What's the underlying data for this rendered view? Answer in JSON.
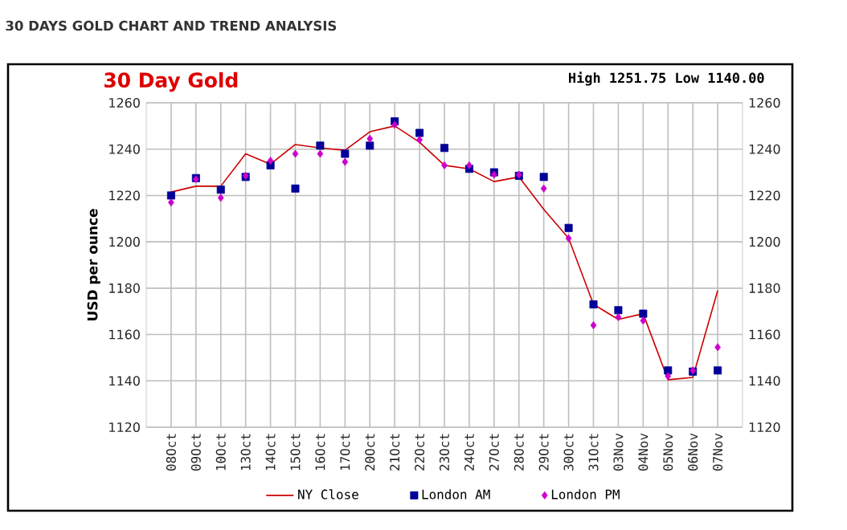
{
  "chart_data": {
    "type": "line",
    "title": "30 DAYS GOLD CHART AND TREND ANALYSIS",
    "annotations": [
      "30 Day Gold",
      "High 1251.75 Low 1140.00"
    ],
    "ylabel": "USD per ounce",
    "categories": [
      "08Oct",
      "09Oct",
      "10Oct",
      "13Oct",
      "14Oct",
      "15Oct",
      "16Oct",
      "17Oct",
      "20Oct",
      "21Oct",
      "22Oct",
      "23Oct",
      "24Oct",
      "27Oct",
      "28Oct",
      "29Oct",
      "30Oct",
      "31Oct",
      "03Nov",
      "04Nov",
      "05Nov",
      "06Nov",
      "07Nov"
    ],
    "series": [
      {
        "name": "NY Close",
        "marker": "none",
        "color": "#cc0000",
        "values": [
          1221.5,
          1224,
          1224,
          1238,
          1233.5,
          1242,
          1240.5,
          1239.5,
          1247.5,
          1250,
          1243,
          1233,
          1231.5,
          1226,
          1228,
          1214,
          1201.5,
          1173,
          1166.5,
          1169,
          1140.5,
          1141.5,
          1179
        ]
      },
      {
        "name": "London AM",
        "type": "scatter",
        "marker": "square",
        "color": "#000099",
        "values": [
          1220,
          1227.5,
          1222.5,
          1228,
          1233,
          1223,
          1241.5,
          1238,
          1241.5,
          1252,
          1247,
          1240.5,
          1231.5,
          1230,
          1228.5,
          1228,
          1206,
          1173,
          1170.5,
          1169,
          1144.5,
          1144,
          1144.5
        ]
      },
      {
        "name": "London PM",
        "type": "scatter",
        "marker": "diamond",
        "color": "#cc00cc",
        "values": [
          1217,
          1227,
          1219,
          1228.5,
          1235,
          1238,
          1238,
          1234.5,
          1244.5,
          1250.5,
          1244,
          1233,
          1233,
          1229,
          1229,
          1223,
          1201.5,
          1164,
          1167.5,
          1166,
          1142,
          1144.5,
          1154.5
        ]
      }
    ],
    "ylim": [
      1120,
      1260
    ],
    "yticks": [
      1120,
      1140,
      1160,
      1180,
      1200,
      1220,
      1240,
      1260
    ],
    "y2lim": [
      1120,
      1260
    ],
    "y2ticks": [
      1120,
      1140,
      1160,
      1180,
      1200,
      1220,
      1240,
      1260
    ],
    "grid": true,
    "legend": "bottom",
    "line_style": "solid"
  }
}
